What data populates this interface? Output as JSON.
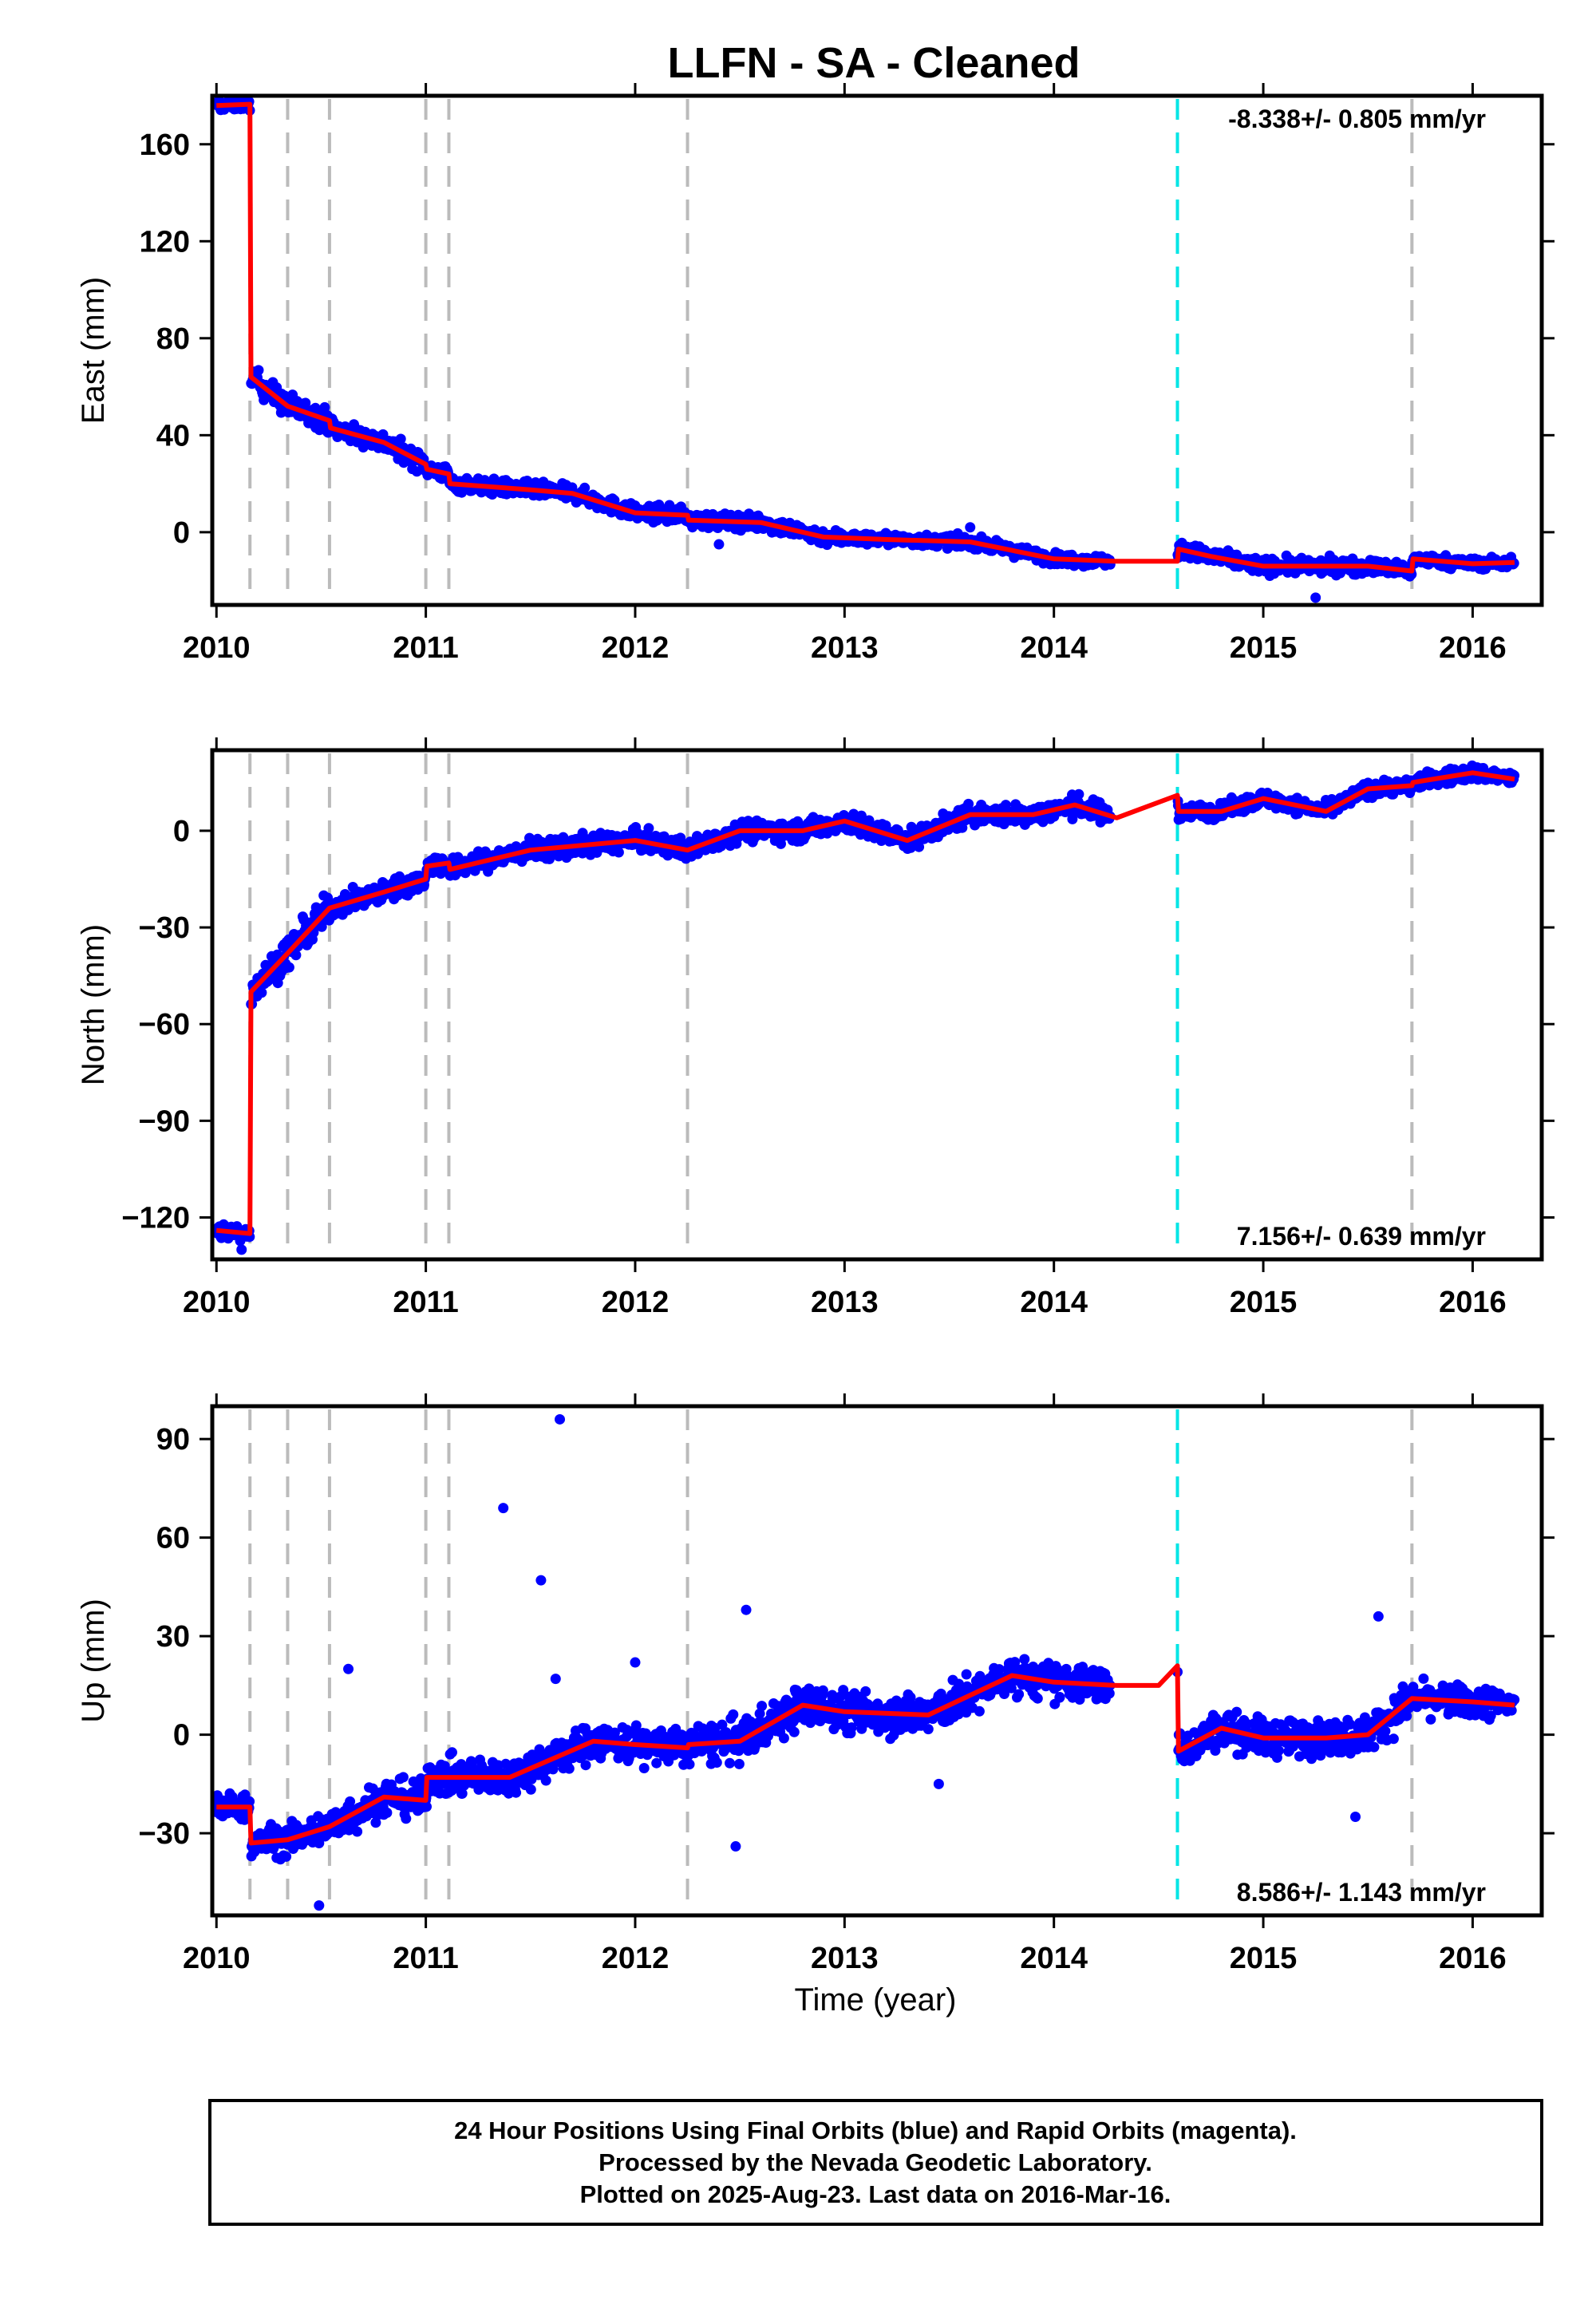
{
  "chart_data": {
    "type": "scatter",
    "title": "LLFN  - SA - Cleaned",
    "xlabel": "Time (year)",
    "xlim": [
      2009.98,
      2016.33
    ],
    "xticks": [
      2010,
      2011,
      2012,
      2013,
      2014,
      2015,
      2016
    ],
    "xtick_labels": [
      "2010",
      "2011",
      "2012",
      "2013",
      "2014",
      "2015",
      "2016"
    ],
    "colors": {
      "observations": "#0000ff",
      "model": "#ff0000",
      "steps": "#bbbbbb",
      "equipment_change": "#00e5e5"
    },
    "step_lines": [
      2010.16,
      2010.34,
      2010.54,
      2011.0,
      2011.11,
      2012.25,
      2015.71
    ],
    "equipment_change_line": 2014.59,
    "panels": [
      {
        "id": "east",
        "ylabel": "East (mm)",
        "ylim": [
          -30,
          180
        ],
        "yticks": [
          0,
          40,
          80,
          120,
          160
        ],
        "ytick_labels": [
          "0",
          "40",
          "80",
          "120",
          "160"
        ],
        "rate_label": "-8.338+/- 0.805 mm/yr",
        "rate_position": "top-right",
        "model": [
          [
            2010.0,
            176
          ],
          [
            2010.16,
            176.5
          ],
          [
            2010.165,
            64
          ],
          [
            2010.34,
            52
          ],
          [
            2010.54,
            46
          ],
          [
            2010.545,
            43
          ],
          [
            2010.8,
            37
          ],
          [
            2011.0,
            28
          ],
          [
            2011.005,
            26
          ],
          [
            2011.11,
            24
          ],
          [
            2011.115,
            20
          ],
          [
            2011.5,
            17.5
          ],
          [
            2011.7,
            16
          ],
          [
            2012.0,
            8
          ],
          [
            2012.25,
            7
          ],
          [
            2012.255,
            5
          ],
          [
            2012.6,
            4
          ],
          [
            2012.9,
            -2
          ],
          [
            2013.2,
            -3
          ],
          [
            2013.6,
            -4
          ],
          [
            2014.0,
            -11
          ],
          [
            2014.3,
            -12
          ],
          [
            2014.59,
            -12
          ],
          [
            2014.595,
            -7
          ],
          [
            2014.75,
            -10
          ],
          [
            2015.0,
            -14
          ],
          [
            2015.3,
            -14
          ],
          [
            2015.5,
            -14
          ],
          [
            2015.71,
            -16
          ],
          [
            2015.715,
            -11
          ],
          [
            2016.0,
            -13
          ],
          [
            2016.2,
            -12.5
          ]
        ],
        "observation_bands": [
          [
            2010.0,
            2010.16,
            176,
            3
          ],
          [
            2010.165,
            2010.55,
            50,
            6
          ],
          [
            2010.55,
            2011.0,
            36,
            5
          ],
          [
            2011.0,
            2011.5,
            20,
            4
          ],
          [
            2011.5,
            2012.0,
            14,
            4
          ],
          [
            2012.0,
            2012.6,
            6,
            4
          ],
          [
            2012.6,
            2013.0,
            0,
            4
          ],
          [
            2013.0,
            2013.7,
            -3,
            3
          ],
          [
            2013.7,
            2014.27,
            -11,
            3
          ],
          [
            2014.59,
            2015.0,
            -10,
            4
          ],
          [
            2015.0,
            2015.71,
            -13,
            4
          ],
          [
            2015.71,
            2016.2,
            -12,
            3
          ]
        ],
        "outliers": [
          [
            2015.25,
            -27
          ],
          [
            2013.6,
            2
          ],
          [
            2012.4,
            -5
          ]
        ]
      },
      {
        "id": "north",
        "ylabel": "North (mm)",
        "ylim": [
          -133,
          25
        ],
        "yticks": [
          -120,
          -90,
          -60,
          -30,
          0
        ],
        "ytick_labels": [
          "−120",
          "−90",
          "−60",
          "−30",
          "0"
        ],
        "rate_label": "7.156+/- 0.639 mm/yr",
        "rate_position": "bottom-right",
        "model": [
          [
            2010.0,
            -124
          ],
          [
            2010.16,
            -125
          ],
          [
            2010.165,
            -50
          ],
          [
            2010.34,
            -38
          ],
          [
            2010.54,
            -24
          ],
          [
            2010.8,
            -19
          ],
          [
            2011.0,
            -15
          ],
          [
            2011.005,
            -11
          ],
          [
            2011.11,
            -10
          ],
          [
            2011.115,
            -12
          ],
          [
            2011.5,
            -6
          ],
          [
            2012.0,
            -3
          ],
          [
            2012.25,
            -6
          ],
          [
            2012.5,
            0
          ],
          [
            2012.8,
            0
          ],
          [
            2013.0,
            3
          ],
          [
            2013.3,
            -3
          ],
          [
            2013.6,
            5
          ],
          [
            2013.9,
            5
          ],
          [
            2014.1,
            8
          ],
          [
            2014.3,
            4
          ],
          [
            2014.59,
            11
          ],
          [
            2014.595,
            6
          ],
          [
            2014.8,
            6
          ],
          [
            2015.0,
            10
          ],
          [
            2015.3,
            6
          ],
          [
            2015.5,
            13
          ],
          [
            2015.71,
            14
          ],
          [
            2015.715,
            15
          ],
          [
            2016.0,
            18
          ],
          [
            2016.2,
            16
          ]
        ],
        "observation_bands": [
          [
            2010.0,
            2010.16,
            -125,
            3
          ],
          [
            2010.165,
            2010.55,
            -38,
            6
          ],
          [
            2010.55,
            2011.0,
            -19,
            4
          ],
          [
            2011.0,
            2012.0,
            -7,
            4
          ],
          [
            2012.0,
            2012.6,
            -3,
            4
          ],
          [
            2012.6,
            2013.6,
            1,
            4
          ],
          [
            2013.6,
            2014.27,
            5,
            4
          ],
          [
            2014.59,
            2015.0,
            6,
            3
          ],
          [
            2015.0,
            2015.4,
            8,
            3
          ],
          [
            2015.4,
            2015.71,
            12,
            3
          ],
          [
            2015.71,
            2016.2,
            17,
            3
          ]
        ],
        "outliers": [
          [
            2010.12,
            -130
          ]
        ]
      },
      {
        "id": "up",
        "ylabel": "Up (mm)",
        "ylim": [
          -55,
          100
        ],
        "yticks": [
          -30,
          0,
          30,
          60,
          90
        ],
        "ytick_labels": [
          "−30",
          "0",
          "30",
          "60",
          "90"
        ],
        "rate_label": "8.586+/- 1.143 mm/yr",
        "rate_position": "bottom-right",
        "model": [
          [
            2010.0,
            -22
          ],
          [
            2010.16,
            -22
          ],
          [
            2010.165,
            -33
          ],
          [
            2010.34,
            -32
          ],
          [
            2010.54,
            -28
          ],
          [
            2010.8,
            -19
          ],
          [
            2011.0,
            -20
          ],
          [
            2011.005,
            -13
          ],
          [
            2011.11,
            -13
          ],
          [
            2011.115,
            -13
          ],
          [
            2011.4,
            -13
          ],
          [
            2011.8,
            -2
          ],
          [
            2012.0,
            -3
          ],
          [
            2012.25,
            -4
          ],
          [
            2012.255,
            -3
          ],
          [
            2012.5,
            -2
          ],
          [
            2012.8,
            9
          ],
          [
            2013.0,
            7
          ],
          [
            2013.4,
            6
          ],
          [
            2013.8,
            18
          ],
          [
            2014.0,
            16
          ],
          [
            2014.3,
            15
          ],
          [
            2014.5,
            15
          ],
          [
            2014.59,
            21
          ],
          [
            2014.595,
            -5
          ],
          [
            2014.8,
            2
          ],
          [
            2015.0,
            -1
          ],
          [
            2015.3,
            -1
          ],
          [
            2015.5,
            0
          ],
          [
            2015.71,
            11
          ],
          [
            2016.0,
            10
          ],
          [
            2016.2,
            9
          ]
        ],
        "observation_bands": [
          [
            2010.0,
            2010.16,
            -20,
            5
          ],
          [
            2010.165,
            2010.55,
            -33,
            6
          ],
          [
            2010.55,
            2011.0,
            -22,
            7
          ],
          [
            2011.0,
            2011.6,
            -13,
            7
          ],
          [
            2011.6,
            2012.3,
            -3,
            7
          ],
          [
            2012.3,
            2012.6,
            2,
            8
          ],
          [
            2012.6,
            2013.6,
            7,
            8
          ],
          [
            2013.6,
            2014.27,
            16,
            7
          ],
          [
            2014.59,
            2015.0,
            0,
            7
          ],
          [
            2015.0,
            2015.5,
            -2,
            7
          ],
          [
            2015.5,
            2015.71,
            5,
            7
          ],
          [
            2015.71,
            2016.2,
            10,
            6
          ]
        ],
        "outliers": [
          [
            2011.37,
            69
          ],
          [
            2011.55,
            47
          ],
          [
            2011.64,
            96
          ],
          [
            2011.62,
            17
          ],
          [
            2012.0,
            22
          ],
          [
            2012.53,
            38
          ],
          [
            2010.63,
            20
          ],
          [
            2010.49,
            -52
          ],
          [
            2012.48,
            -34
          ],
          [
            2015.55,
            36
          ],
          [
            2013.45,
            -15
          ],
          [
            2015.44,
            -25
          ]
        ]
      }
    ],
    "footer": [
      "24 Hour Positions Using Final Orbits (blue) and Rapid Orbits (magenta).",
      "Processed by the Nevada Geodetic Laboratory.",
      "Plotted on 2025-Aug-23. Last data on 2016-Mar-16."
    ]
  }
}
